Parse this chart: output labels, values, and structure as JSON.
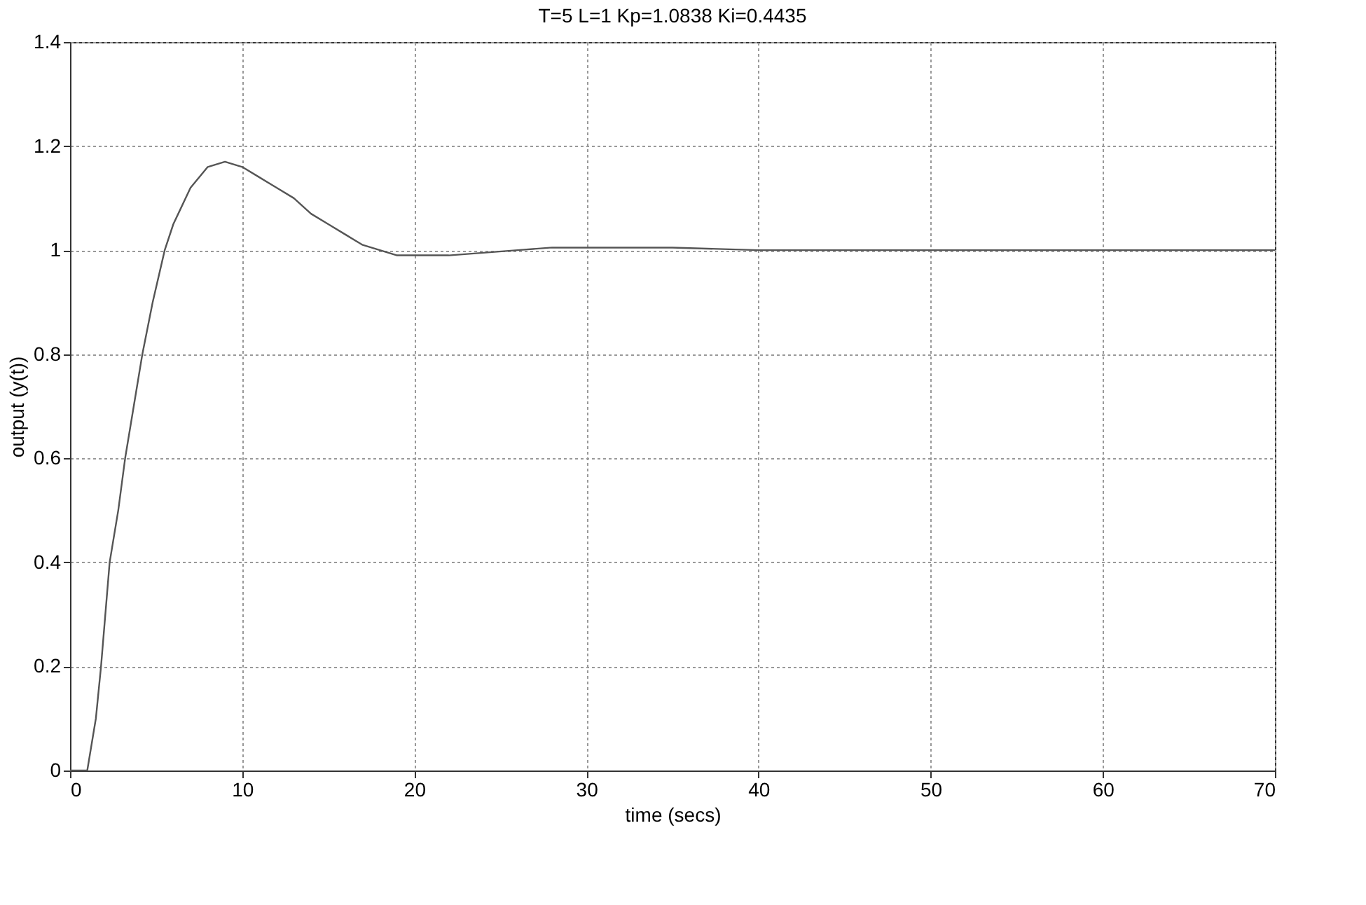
{
  "chart_data": {
    "type": "line",
    "title": "T=5     L=1     Kp=1.0838     Ki=0.4435",
    "xlabel": "time (secs)",
    "ylabel": "output (y(t))",
    "series": [
      {
        "color": "#555555",
        "x": [
          0,
          1,
          1.5,
          1.8,
          2.3,
          2.8,
          3.2,
          3.7,
          4.2,
          4.8,
          5.5,
          6,
          7,
          8,
          9,
          10,
          11,
          12,
          13,
          14,
          15,
          16,
          17,
          18,
          19,
          20,
          21,
          22,
          24,
          26,
          28,
          30,
          35,
          40,
          50,
          60,
          70
        ],
        "values": [
          0,
          0,
          0.1,
          0.2,
          0.4,
          0.5,
          0.6,
          0.7,
          0.8,
          0.9,
          1.0,
          1.05,
          1.12,
          1.16,
          1.17,
          1.16,
          1.14,
          1.12,
          1.1,
          1.07,
          1.05,
          1.03,
          1.01,
          1.0,
          0.99,
          0.99,
          0.99,
          0.99,
          0.995,
          1.0,
          1.005,
          1.005,
          1.005,
          1.0,
          1.0,
          1.0,
          1.0
        ]
      }
    ],
    "xlim": [
      0,
      70
    ],
    "xticks": [
      0,
      10,
      20,
      30,
      40,
      50,
      60,
      70
    ],
    "ylim": [
      0,
      1.4
    ],
    "yticks": [
      0,
      0.2,
      0.4,
      0.6,
      0.8,
      1,
      1.2,
      1.4
    ],
    "grid": true
  }
}
